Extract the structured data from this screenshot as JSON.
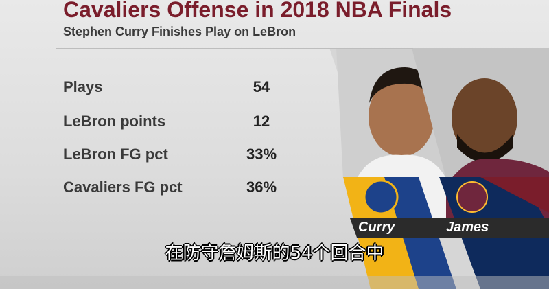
{
  "header": {
    "title": "Cavaliers Offense in 2018 NBA Finals",
    "subtitle": "Stephen Curry Finishes Play on LeBron"
  },
  "table": {
    "rows": [
      [
        "Plays",
        "54"
      ],
      [
        "LeBron points",
        "12"
      ],
      [
        "LeBron FG pct",
        "33%"
      ],
      [
        "Cavaliers FG pct",
        "36%"
      ]
    ]
  },
  "players": [
    {
      "name": "Curry"
    },
    {
      "name": "James"
    }
  ],
  "caption": "在防守詹姆斯的54个回合中"
}
